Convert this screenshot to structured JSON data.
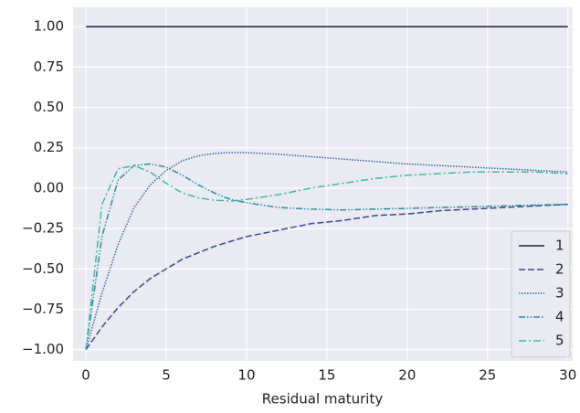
{
  "chart_data": {
    "type": "line",
    "xlabel": "Residual maturity",
    "x": [
      0,
      1,
      2,
      3,
      4,
      5,
      6,
      7,
      8,
      9,
      10,
      12,
      14,
      16,
      18,
      20,
      22,
      24,
      26,
      28,
      30
    ],
    "series": [
      {
        "name": "1",
        "color": "#2a1d38",
        "dash": "solid",
        "values": [
          1,
          1,
          1,
          1,
          1,
          1,
          1,
          1,
          1,
          1,
          1,
          1,
          1,
          1,
          1,
          1,
          1,
          1,
          1,
          1,
          1
        ]
      },
      {
        "name": "2",
        "color": "#3a4a86",
        "dash": "dashed",
        "values": [
          -1,
          -0.86,
          -0.74,
          -0.64,
          -0.56,
          -0.5,
          -0.44,
          -0.4,
          -0.36,
          -0.33,
          -0.3,
          -0.26,
          -0.22,
          -0.2,
          -0.17,
          -0.16,
          -0.14,
          -0.13,
          -0.12,
          -0.11,
          -0.1
        ]
      },
      {
        "name": "3",
        "color": "#3b67a4",
        "dash": "dotted",
        "values": [
          -1,
          -0.65,
          -0.35,
          -0.12,
          0.02,
          0.11,
          0.17,
          0.2,
          0.215,
          0.22,
          0.22,
          0.21,
          0.195,
          0.18,
          0.165,
          0.15,
          0.14,
          0.13,
          0.12,
          0.11,
          0.1
        ]
      },
      {
        "name": "4",
        "color": "#2f8d9b",
        "dash": "dashdotdot",
        "values": [
          -1,
          -0.3,
          0.05,
          0.14,
          0.15,
          0.13,
          0.08,
          0.02,
          -0.03,
          -0.07,
          -0.09,
          -0.12,
          -0.13,
          -0.135,
          -0.13,
          -0.125,
          -0.12,
          -0.115,
          -0.11,
          -0.105,
          -0.1
        ]
      },
      {
        "name": "5",
        "color": "#3fb8a6",
        "dash": "dashdot",
        "values": [
          -1,
          -0.1,
          0.12,
          0.14,
          0.1,
          0.03,
          -0.03,
          -0.06,
          -0.075,
          -0.08,
          -0.07,
          -0.04,
          0,
          0.03,
          0.06,
          0.08,
          0.09,
          0.1,
          0.1,
          0.1,
          0.09
        ]
      }
    ],
    "xlim": [
      -0.8,
      30.3
    ],
    "ylim": [
      -1.07,
      1.12
    ],
    "xticks": [
      0,
      5,
      10,
      15,
      20,
      25,
      30
    ],
    "yticks": [
      {
        "value": -1,
        "label": "−1.00"
      },
      {
        "value": -0.75,
        "label": "−0.75"
      },
      {
        "value": -0.5,
        "label": "−0.50"
      },
      {
        "value": -0.25,
        "label": "−0.25"
      },
      {
        "value": 0,
        "label": "0.00"
      },
      {
        "value": 0.25,
        "label": "0.25"
      },
      {
        "value": 0.5,
        "label": "0.50"
      },
      {
        "value": 0.75,
        "label": "0.75"
      },
      {
        "value": 1,
        "label": "1.00"
      }
    ],
    "grid": true,
    "legend": "lower right"
  }
}
